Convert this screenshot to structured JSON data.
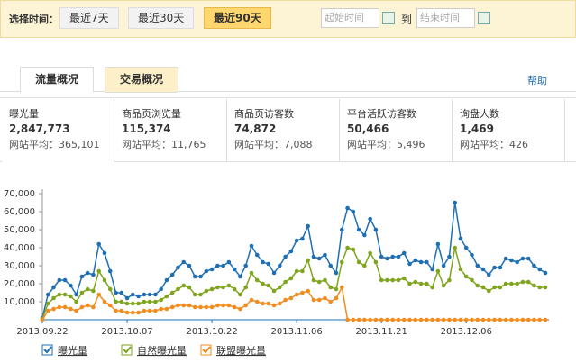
{
  "filter": {
    "label": "选择时间：",
    "options": [
      "最近7天",
      "最近30天",
      "最近90天"
    ],
    "start_placeholder": "起始时间",
    "to": "到",
    "end_placeholder": "结束时间"
  },
  "tabs": [
    "流量概况",
    "交易概况"
  ],
  "help": "帮助",
  "stats": [
    {
      "label": "曝光量",
      "value": "2,847,773",
      "avg_label": "网站平均：",
      "avg": "365,101"
    },
    {
      "label": "商品页浏览量",
      "value": "115,374",
      "avg_label": "网站平均：",
      "avg": "11,765"
    },
    {
      "label": "商品页访客数",
      "value": "74,872",
      "avg_label": "网站平均：",
      "avg": "7,088"
    },
    {
      "label": "平台活跃访客数",
      "value": "50,466",
      "avg_label": "网站平均：",
      "avg": "5,496"
    },
    {
      "label": "询盘人数",
      "value": "1,469",
      "avg_label": "网站平均：",
      "avg": "426"
    }
  ],
  "chart_data": {
    "type": "line",
    "categories": [
      "2013.09.22",
      null,
      null,
      null,
      null,
      null,
      null,
      null,
      null,
      null,
      null,
      null,
      null,
      null,
      null,
      "2013.10.07",
      null,
      null,
      null,
      null,
      null,
      null,
      null,
      null,
      null,
      null,
      null,
      null,
      null,
      null,
      "2013.10.22",
      null,
      null,
      null,
      null,
      null,
      null,
      null,
      null,
      null,
      null,
      null,
      null,
      null,
      null,
      "2013.11.06",
      null,
      null,
      null,
      null,
      null,
      null,
      null,
      null,
      null,
      null,
      null,
      null,
      null,
      null,
      "2013.11.21",
      null,
      null,
      null,
      null,
      null,
      null,
      null,
      null,
      null,
      null,
      null,
      null,
      null,
      null,
      "2013.12.06",
      null,
      null,
      null,
      null,
      null,
      null,
      null,
      null,
      null,
      null,
      null,
      null,
      null,
      null
    ],
    "series": [
      {
        "name": "曝光量",
        "color": "#1f6fb5",
        "values": [
          1000,
          14000,
          18000,
          22000,
          22000,
          19000,
          14000,
          24000,
          26000,
          25000,
          42000,
          37000,
          27000,
          15000,
          15000,
          12000,
          14000,
          13000,
          14000,
          14000,
          14000,
          17000,
          22000,
          25000,
          29000,
          32000,
          30000,
          24000,
          24000,
          27000,
          28000,
          30000,
          30000,
          32000,
          28000,
          24000,
          30000,
          41000,
          36000,
          32000,
          31000,
          26000,
          30000,
          35000,
          38000,
          44000,
          45000,
          52000,
          35000,
          34000,
          36000,
          30000,
          26000,
          50000,
          62000,
          60000,
          50000,
          47000,
          56000,
          50000,
          35000,
          34000,
          35000,
          35000,
          37000,
          31000,
          33000,
          32000,
          32000,
          28000,
          42000,
          30000,
          35000,
          65000,
          45000,
          40000,
          36000,
          30000,
          28000,
          25000,
          29000,
          29000,
          34000,
          33000,
          32000,
          34000,
          34000,
          30000,
          28000,
          26000
        ]
      },
      {
        "name": "自然曝光量",
        "color": "#7ea51c",
        "values": [
          500,
          9000,
          12000,
          14000,
          14000,
          13000,
          10000,
          15000,
          17000,
          16000,
          27000,
          22000,
          17000,
          10000,
          10000,
          9000,
          9000,
          9000,
          10000,
          10000,
          10000,
          11000,
          13000,
          15000,
          17000,
          19000,
          18000,
          14000,
          14000,
          16000,
          17000,
          18000,
          18000,
          19000,
          17000,
          14000,
          18000,
          26000,
          22000,
          20000,
          19000,
          16000,
          18000,
          21000,
          23000,
          27000,
          27000,
          33000,
          22000,
          21000,
          22000,
          18000,
          17000,
          32000,
          40000,
          39000,
          32000,
          30000,
          37000,
          32000,
          22000,
          22000,
          22000,
          22000,
          23000,
          20000,
          21000,
          20000,
          20000,
          18000,
          27000,
          19000,
          22000,
          40000,
          28000,
          24000,
          22000,
          19000,
          18000,
          16000,
          18000,
          18000,
          20000,
          20000,
          20000,
          21000,
          21000,
          19000,
          18000,
          18000
        ]
      },
      {
        "name": "联盟曝光量",
        "color": "#f28c1e",
        "values": [
          0,
          5000,
          6000,
          7000,
          7000,
          6000,
          5000,
          7000,
          8000,
          7000,
          14000,
          10000,
          8000,
          5000,
          5000,
          4000,
          4000,
          4000,
          5000,
          5000,
          5000,
          6000,
          6000,
          7000,
          8000,
          8000,
          8000,
          7000,
          7000,
          7000,
          7000,
          8000,
          8000,
          8000,
          7000,
          6000,
          8000,
          11000,
          10000,
          9000,
          9000,
          8000,
          9000,
          11000,
          12000,
          14000,
          15000,
          16000,
          11000,
          11000,
          12000,
          10000,
          12000,
          18000,
          0,
          0,
          0,
          0,
          0,
          0,
          0,
          0,
          0,
          0,
          0,
          0,
          0,
          0,
          0,
          0,
          0,
          0,
          0,
          0,
          0,
          0,
          0,
          0,
          0,
          0,
          0,
          0,
          0,
          0,
          0,
          0,
          0,
          0,
          0,
          0
        ]
      }
    ],
    "ylim": [
      0,
      70000
    ],
    "yticks": [
      {
        "value": 10000,
        "label": "10,000"
      },
      {
        "value": 20000,
        "label": "20,000"
      },
      {
        "value": 30000,
        "label": "30,000"
      },
      {
        "value": 40000,
        "label": "40,000"
      },
      {
        "value": 50000,
        "label": "50,000"
      },
      {
        "value": 60000,
        "label": "60,000"
      },
      {
        "value": 70000,
        "label": "70,000"
      }
    ],
    "grid": false,
    "legend": "bottom"
  }
}
